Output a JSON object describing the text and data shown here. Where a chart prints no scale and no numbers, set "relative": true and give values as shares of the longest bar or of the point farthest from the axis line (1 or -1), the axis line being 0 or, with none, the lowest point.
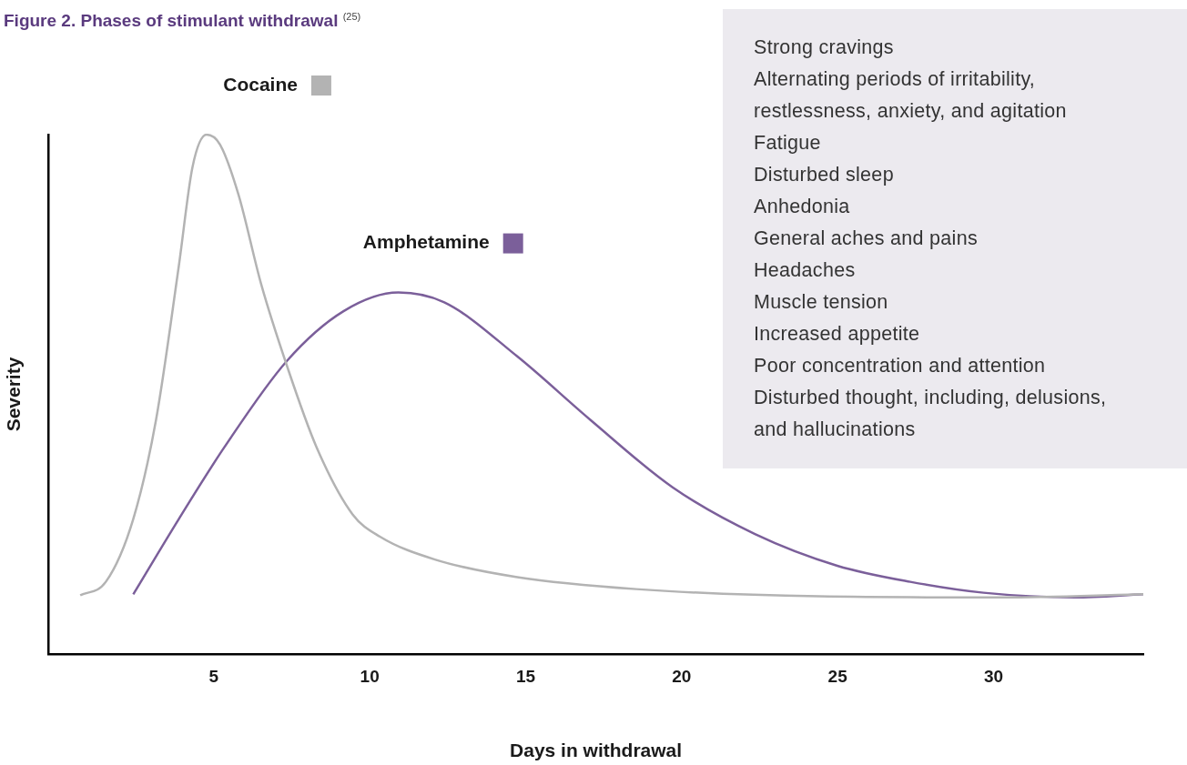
{
  "chart_data": {
    "type": "line",
    "title": "Figure 2. Phases of stimulant withdrawal $^{(25)}$",
    "xlabel": "Days in withdrawal",
    "ylabel": "Severity",
    "relative": true,
    "tick_labels": "x",
    "marker": "none",
    "legend": "top left",
    "xlim": [
      -0.3,
      34.8
    ],
    "xticks": [
      5,
      10,
      15,
      20,
      25,
      30
    ],
    "series": [
      {
        "name": "Cocaine",
        "color": "#b3b3b3",
        "x": [
          0.72,
          1.54,
          2.42,
          3.15,
          3.88,
          4.32,
          4.77,
          5.2,
          5.79,
          6.52,
          7.34,
          8.29,
          9.45,
          10.33,
          12.09,
          14.73,
          18.54,
          24.4,
          30.26,
          34.8
        ],
        "values": [
          0.113,
          0.139,
          0.26,
          0.451,
          0.747,
          0.938,
          1.0,
          0.981,
          0.885,
          0.712,
          0.556,
          0.399,
          0.269,
          0.226,
          0.182,
          0.148,
          0.125,
          0.111,
          0.109,
          0.115
        ]
      },
      {
        "name": "Amphetamine",
        "color": "#7b5f9a",
        "x": [
          2.42,
          3.88,
          5.35,
          7.34,
          9.16,
          10.92,
          12.39,
          14.73,
          17.07,
          19.71,
          22.35,
          24.99,
          27.33,
          29.68,
          32.61,
          34.8
        ],
        "values": [
          0.115,
          0.26,
          0.399,
          0.564,
          0.66,
          0.696,
          0.677,
          0.573,
          0.451,
          0.321,
          0.231,
          0.17,
          0.139,
          0.118,
          0.109,
          0.115
        ]
      }
    ],
    "annotations": [
      "Strong cravings",
      "Alternating periods of irritability, restlessness, anxiety, and agitation",
      "Fatigue",
      "Disturbed sleep",
      "Anhedonia",
      "General aches and pains",
      "Headaches",
      "Muscle tension",
      "Increased appetite",
      "Poor concentration and attention",
      "Disturbed thought, including, delusions, and hallucinations"
    ]
  }
}
